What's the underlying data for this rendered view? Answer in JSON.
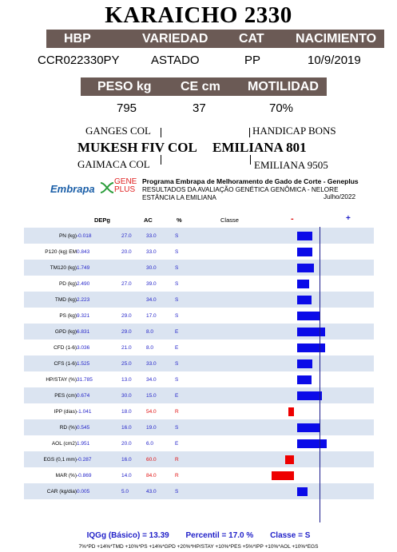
{
  "title": "KARAICHO 2330",
  "animal": {
    "headers": [
      "HBP",
      "VARIEDAD",
      "CAT",
      "NACIMIENTO"
    ],
    "values": [
      "CCR022330PY",
      "ASTADO",
      "PP",
      "10/9/2019"
    ]
  },
  "measures": {
    "headers": [
      "PESO kg",
      "CE cm",
      "MOTILIDAD"
    ],
    "values": [
      "795",
      "37",
      "70%"
    ]
  },
  "pedigree": {
    "sire_sire": "GANGES COL",
    "sire": "MUKESH FIV COL",
    "sire_dam": "GAIMACA COL",
    "dam_sire": "HANDICAP BONS",
    "dam": "EMILIANA 801",
    "dam_dam": "EMILIANA 9505"
  },
  "program": {
    "logo_embrapa": "Embrapa",
    "logo_gene": "GENE",
    "logo_plus": "PLUS",
    "line1": "Programa Embrapa de Melhoramento de Gado de Corte - Geneplus",
    "line2": "RESULTADOS DA AVALIAÇÃO GENÉTICA GENÔMICA - NELORE",
    "line3": "ESTÂNCIA LA EMILIANA",
    "date": "Julho/2022"
  },
  "table_headers": {
    "dep": "DEPg",
    "ac": "AC",
    "pct": "%",
    "classe": "Classe",
    "minus": "-",
    "plus": "+"
  },
  "chart_data": {
    "type": "bar",
    "orientation": "horizontal",
    "categories": [
      "PN (kg)",
      "P120 (kg) EM",
      "TM120 (kg)",
      "PD (kg)",
      "TMD (kg)",
      "PS (kg)",
      "GPD (kg)",
      "CFD (1-6)",
      "CFS (1-6)",
      "HP/STAY (%)",
      "PES (cm)",
      "IPP (dias)",
      "RD (%)",
      "AOL (cm2)",
      "EGS (0,1 mm)",
      "MAR (%)",
      "CAR (kg/dia)"
    ],
    "rows": [
      {
        "trait": "PN (kg)",
        "dep": "-0.018",
        "ac": "27.0",
        "pct": "33.0",
        "classe": "S",
        "bar": 0.67,
        "color": "blue"
      },
      {
        "trait": "P120 (kg) EM",
        "dep": "0.843",
        "ac": "20.0",
        "pct": "33.0",
        "classe": "S",
        "bar": 0.67,
        "color": "blue"
      },
      {
        "trait": "TM120 (kg)",
        "dep": "1.749",
        "ac": "",
        "pct": "30.0",
        "classe": "S",
        "bar": 0.7,
        "color": "blue"
      },
      {
        "trait": "PD (kg)",
        "dep": "2.490",
        "ac": "27.0",
        "pct": "39.0",
        "classe": "S",
        "bar": 0.61,
        "color": "blue"
      },
      {
        "trait": "TMD (kg)",
        "dep": "2.223",
        "ac": "",
        "pct": "34.0",
        "classe": "S",
        "bar": 0.66,
        "color": "blue"
      },
      {
        "trait": "PS (kg)",
        "dep": "9.321",
        "ac": "29.0",
        "pct": "17.0",
        "classe": "S",
        "bar": 0.83,
        "color": "blue"
      },
      {
        "trait": "GPD (kg)",
        "dep": "6.831",
        "ac": "29.0",
        "pct": "8.0",
        "classe": "E",
        "bar": 0.92,
        "color": "blue"
      },
      {
        "trait": "CFD (1-6)",
        "dep": "3.036",
        "ac": "21.0",
        "pct": "8.0",
        "classe": "E",
        "bar": 0.92,
        "color": "blue"
      },
      {
        "trait": "CFS (1-6)",
        "dep": "1.525",
        "ac": "25.0",
        "pct": "33.0",
        "classe": "S",
        "bar": 0.67,
        "color": "blue"
      },
      {
        "trait": "HP/STAY (%)",
        "dep": "31.785",
        "ac": "13.0",
        "pct": "34.0",
        "classe": "S",
        "bar": 0.66,
        "color": "blue"
      },
      {
        "trait": "PES (cm)",
        "dep": "0.674",
        "ac": "30.0",
        "pct": "15.0",
        "classe": "E",
        "bar": 0.85,
        "color": "blue"
      },
      {
        "trait": "IPP (dias)",
        "dep": "-1.041",
        "ac": "18.0",
        "pct": "54.0",
        "classe": "R",
        "bar": -0.46,
        "color": "red"
      },
      {
        "trait": "RD (%)",
        "dep": "0.545",
        "ac": "16.0",
        "pct": "19.0",
        "classe": "S",
        "bar": 0.81,
        "color": "blue"
      },
      {
        "trait": "AOL (cm2)",
        "dep": "1.951",
        "ac": "20.0",
        "pct": "6.0",
        "classe": "E",
        "bar": 0.94,
        "color": "blue"
      },
      {
        "trait": "EGS (0,1 mm)",
        "dep": "-0.287",
        "ac": "16.0",
        "pct": "60.0",
        "classe": "R",
        "bar": -0.4,
        "color": "red"
      },
      {
        "trait": "MAR (%)",
        "dep": "-0.869",
        "ac": "14.0",
        "pct": "84.0",
        "classe": "R",
        "bar": -0.16,
        "color": "red"
      },
      {
        "trait": "CAR (kg/dia)",
        "dep": "0.005",
        "ac": "5.0",
        "pct": "43.0",
        "classe": "S",
        "bar": 0.57,
        "color": "blue"
      }
    ]
  },
  "summary": {
    "iqgg": "IQGg (Básico) = 13.39",
    "percentil": "Percentil = 17.0 %",
    "classe": "Classe = S"
  },
  "formula": "7%*PD +14%*TMD +10%*PS +14%*GPD +20%*HP/STAY +10%*PES +5%*IPP +10%*AOL +10%*EGS",
  "colors": {
    "header_bg": "#6b5a55",
    "stripe": "#dbe4f1",
    "positive": "#0b0be8",
    "negative": "#ee0000",
    "axis": "#1a1a8c"
  }
}
